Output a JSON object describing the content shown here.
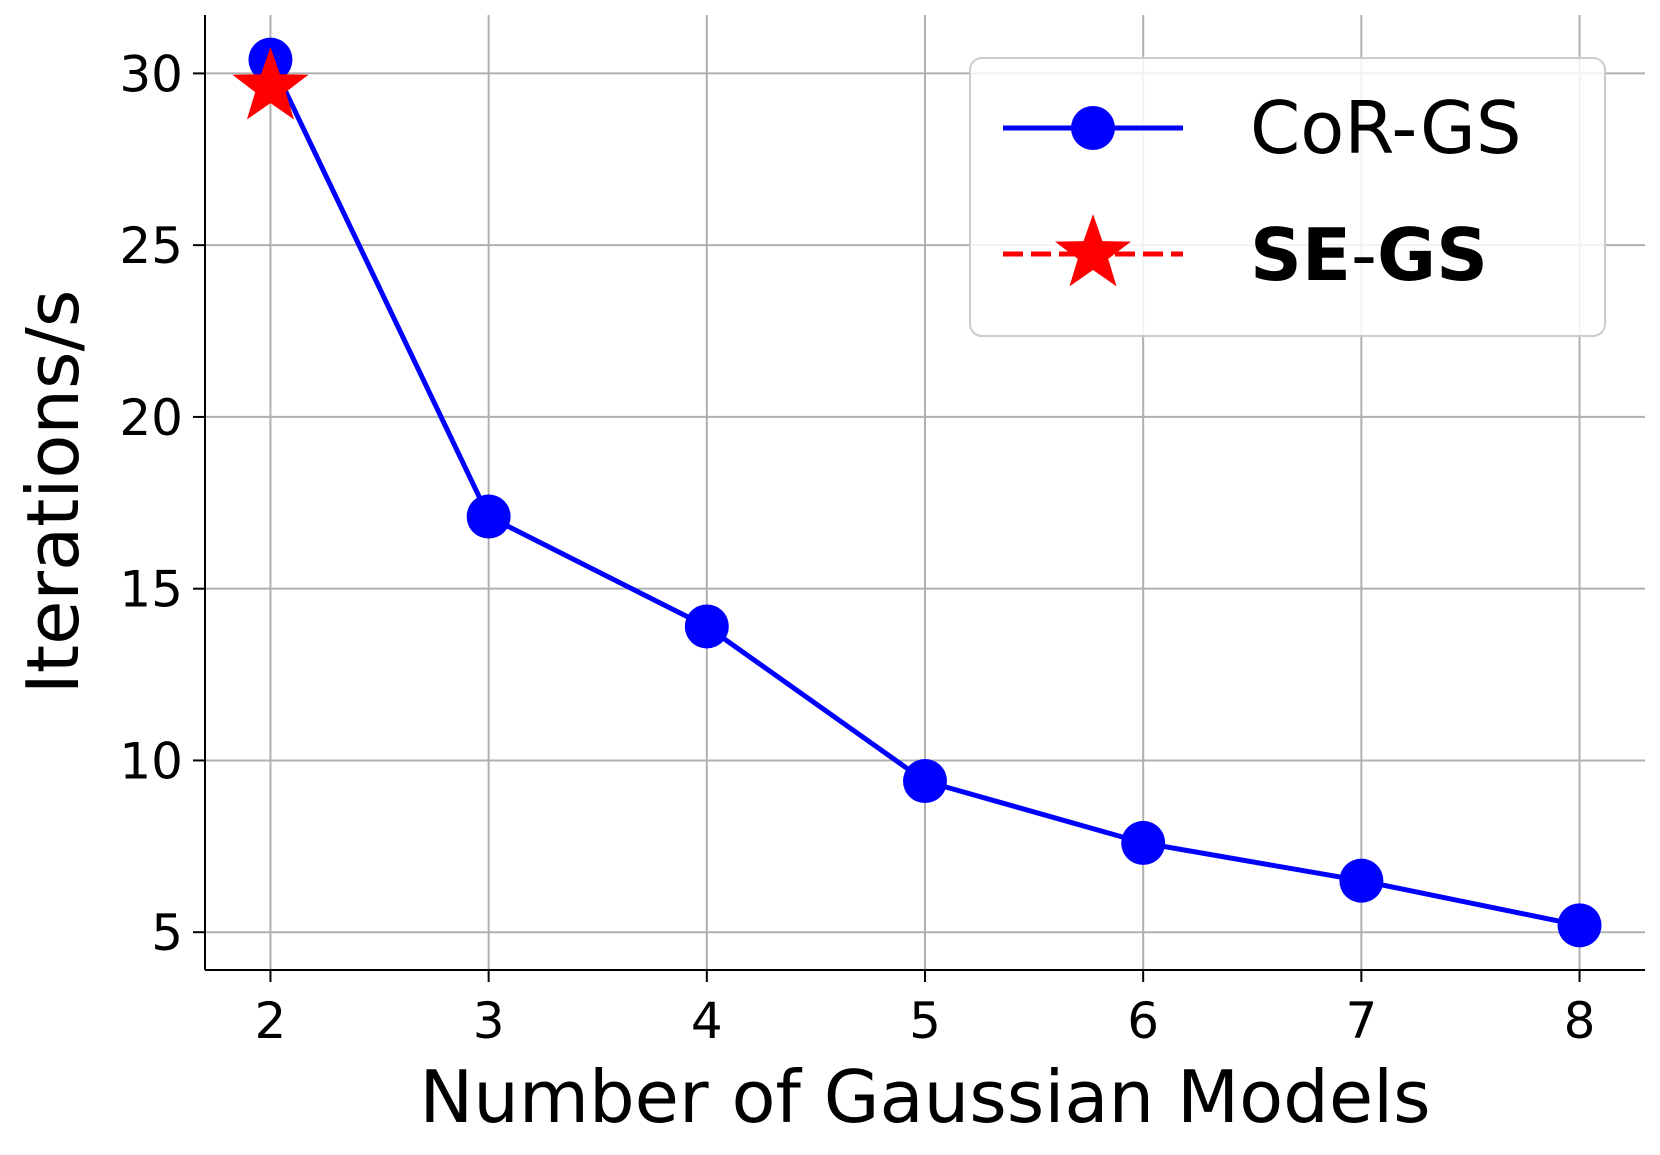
{
  "chart_data": {
    "type": "line",
    "title": "",
    "xlabel": "Number of Gaussian Models",
    "ylabel": "Iterations/s",
    "xlim": [
      1.7,
      8.3
    ],
    "ylim": [
      3.9,
      31.7
    ],
    "x_ticks": [
      "2",
      "3",
      "4",
      "5",
      "6",
      "7",
      "8"
    ],
    "y_ticks": [
      "5",
      "10",
      "15",
      "20",
      "25",
      "30"
    ],
    "grid": true,
    "legend_position": "top-right",
    "series": [
      {
        "name": "CoR-GS",
        "color": "#0000ff",
        "marker": "circle",
        "line_style": "solid",
        "x": [
          2,
          3,
          4,
          5,
          6,
          7,
          8
        ],
        "y": [
          30.4,
          17.1,
          13.9,
          9.4,
          7.6,
          6.5,
          5.2
        ]
      },
      {
        "name": "SE-GS",
        "name_parts": [
          "SE",
          "-",
          "GS"
        ],
        "color": "#ff0000",
        "marker": "star",
        "line_style": "dashed",
        "x": [
          2
        ],
        "y": [
          29.6
        ]
      }
    ]
  }
}
